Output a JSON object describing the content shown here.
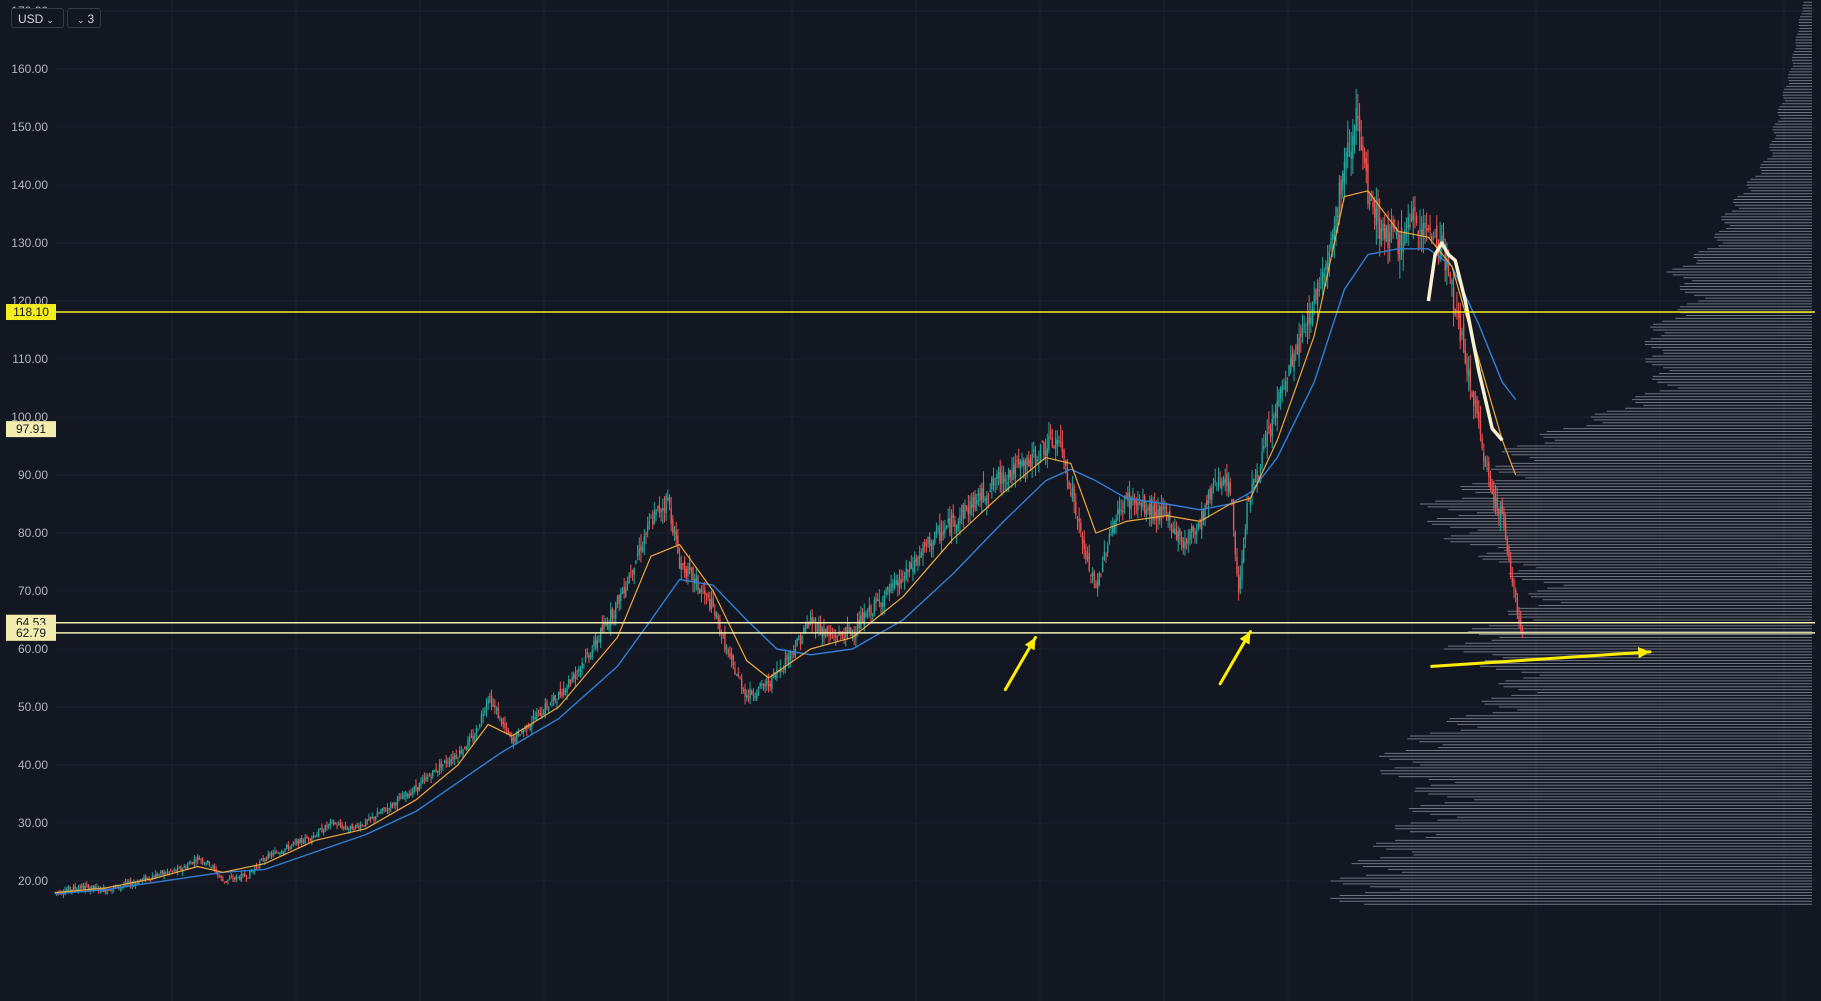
{
  "toolbar": {
    "currency_label": "USD",
    "collapse_count": "3"
  },
  "colors": {
    "background": "#131722",
    "grid": "#1e2230",
    "candle_up": "#26a69a",
    "candle_down": "#ef5350",
    "ma_fast": "#f0a83a",
    "ma_slow": "#2f7fd8",
    "level_line": "#f5ec1f",
    "level_line_light": "#f3eeb0",
    "annotation": "#ffee00",
    "volume_profile": "#808592",
    "axis_text": "#b2b5be"
  },
  "chart_data": {
    "type": "candlestick",
    "ylim": [
      15,
      176
    ],
    "y_ticks": [
      "20.00",
      "30.00",
      "40.00",
      "50.00",
      "60.00",
      "70.00",
      "80.00",
      "90.00",
      "100.00",
      "110.00",
      "120.00",
      "130.00",
      "140.00",
      "150.00",
      "160.00",
      "170.00"
    ],
    "price_path": [
      [
        0,
        18
      ],
      [
        15,
        19
      ],
      [
        30,
        18.5
      ],
      [
        45,
        19.5
      ],
      [
        60,
        21
      ],
      [
        75,
        22
      ],
      [
        85,
        24
      ],
      [
        92,
        23
      ],
      [
        100,
        20
      ],
      [
        115,
        21
      ],
      [
        125,
        24
      ],
      [
        140,
        26
      ],
      [
        155,
        28
      ],
      [
        165,
        30
      ],
      [
        175,
        29
      ],
      [
        185,
        30
      ],
      [
        200,
        33
      ],
      [
        215,
        36
      ],
      [
        230,
        40
      ],
      [
        240,
        42
      ],
      [
        250,
        45
      ],
      [
        258,
        52
      ],
      [
        265,
        48
      ],
      [
        272,
        44
      ],
      [
        285,
        48
      ],
      [
        300,
        52
      ],
      [
        320,
        60
      ],
      [
        335,
        68
      ],
      [
        345,
        75
      ],
      [
        355,
        82
      ],
      [
        365,
        86
      ],
      [
        372,
        75
      ],
      [
        380,
        72
      ],
      [
        392,
        67
      ],
      [
        402,
        58
      ],
      [
        412,
        52
      ],
      [
        425,
        54
      ],
      [
        440,
        60
      ],
      [
        450,
        65
      ],
      [
        462,
        62
      ],
      [
        475,
        63
      ],
      [
        490,
        68
      ],
      [
        505,
        72
      ],
      [
        520,
        78
      ],
      [
        535,
        82
      ],
      [
        550,
        86
      ],
      [
        565,
        90
      ],
      [
        580,
        92
      ],
      [
        590,
        95
      ],
      [
        598,
        96
      ],
      [
        605,
        88
      ],
      [
        612,
        78
      ],
      [
        620,
        70
      ],
      [
        628,
        80
      ],
      [
        638,
        86
      ],
      [
        650,
        84
      ],
      [
        662,
        83
      ],
      [
        672,
        78
      ],
      [
        682,
        82
      ],
      [
        692,
        90
      ],
      [
        700,
        87
      ],
      [
        705,
        70
      ],
      [
        710,
        85
      ],
      [
        718,
        92
      ],
      [
        728,
        102
      ],
      [
        740,
        112
      ],
      [
        750,
        120
      ],
      [
        760,
        130
      ],
      [
        768,
        143
      ],
      [
        775,
        152
      ],
      [
        782,
        138
      ],
      [
        790,
        132
      ],
      [
        800,
        130
      ],
      [
        810,
        134
      ],
      [
        818,
        132
      ],
      [
        826,
        130
      ],
      [
        832,
        122
      ],
      [
        840,
        110
      ],
      [
        848,
        98
      ],
      [
        855,
        88
      ],
      [
        862,
        83
      ],
      [
        866,
        75
      ],
      [
        870,
        68
      ],
      [
        874,
        63
      ]
    ],
    "ma_fast": [
      [
        0,
        18
      ],
      [
        30,
        18.8
      ],
      [
        60,
        20.5
      ],
      [
        85,
        22.5
      ],
      [
        100,
        21.5
      ],
      [
        125,
        23
      ],
      [
        155,
        27
      ],
      [
        185,
        29
      ],
      [
        215,
        34
      ],
      [
        240,
        40
      ],
      [
        258,
        47
      ],
      [
        272,
        45
      ],
      [
        300,
        50
      ],
      [
        335,
        62
      ],
      [
        355,
        76
      ],
      [
        372,
        78
      ],
      [
        392,
        70
      ],
      [
        412,
        58
      ],
      [
        425,
        55
      ],
      [
        450,
        60
      ],
      [
        475,
        62
      ],
      [
        505,
        69
      ],
      [
        535,
        79
      ],
      [
        565,
        87
      ],
      [
        590,
        93
      ],
      [
        605,
        92
      ],
      [
        620,
        80
      ],
      [
        638,
        82
      ],
      [
        662,
        83
      ],
      [
        682,
        82
      ],
      [
        700,
        85
      ],
      [
        712,
        86
      ],
      [
        728,
        96
      ],
      [
        750,
        114
      ],
      [
        768,
        138
      ],
      [
        782,
        139
      ],
      [
        800,
        132
      ],
      [
        818,
        131
      ],
      [
        832,
        126
      ],
      [
        848,
        110
      ],
      [
        862,
        96
      ],
      [
        870,
        90
      ]
    ],
    "ma_slow": [
      [
        0,
        17.8
      ],
      [
        30,
        18.5
      ],
      [
        60,
        19.8
      ],
      [
        100,
        21.5
      ],
      [
        125,
        22
      ],
      [
        155,
        25
      ],
      [
        185,
        28
      ],
      [
        215,
        32
      ],
      [
        240,
        37
      ],
      [
        265,
        42
      ],
      [
        300,
        48
      ],
      [
        335,
        57
      ],
      [
        355,
        65
      ],
      [
        372,
        72
      ],
      [
        392,
        71
      ],
      [
        412,
        65
      ],
      [
        430,
        60
      ],
      [
        450,
        59
      ],
      [
        475,
        60
      ],
      [
        505,
        65
      ],
      [
        535,
        73
      ],
      [
        565,
        82
      ],
      [
        590,
        89
      ],
      [
        605,
        91
      ],
      [
        620,
        89
      ],
      [
        638,
        86
      ],
      [
        662,
        85
      ],
      [
        682,
        84
      ],
      [
        700,
        85
      ],
      [
        712,
        87
      ],
      [
        728,
        93
      ],
      [
        750,
        106
      ],
      [
        768,
        122
      ],
      [
        782,
        128
      ],
      [
        800,
        129
      ],
      [
        818,
        129
      ],
      [
        832,
        126
      ],
      [
        848,
        116
      ],
      [
        862,
        106
      ],
      [
        870,
        103
      ]
    ],
    "ma_highlight": [
      [
        818,
        120
      ],
      [
        822,
        128
      ],
      [
        826,
        130
      ],
      [
        830,
        128
      ],
      [
        834,
        127
      ],
      [
        840,
        120
      ],
      [
        848,
        108
      ],
      [
        856,
        98
      ],
      [
        862,
        96
      ]
    ],
    "volume_profile": [
      {
        "price": 20,
        "width": 0.86
      },
      {
        "price": 25,
        "width": 0.8
      },
      {
        "price": 30,
        "width": 0.74
      },
      {
        "price": 35,
        "width": 0.7
      },
      {
        "price": 40,
        "width": 0.8
      },
      {
        "price": 45,
        "width": 0.72
      },
      {
        "price": 50,
        "width": 0.6
      },
      {
        "price": 55,
        "width": 0.55
      },
      {
        "price": 60,
        "width": 0.66
      },
      {
        "price": 63,
        "width": 0.62
      },
      {
        "price": 66,
        "width": 0.55
      },
      {
        "price": 70,
        "width": 0.5
      },
      {
        "price": 75,
        "width": 0.58
      },
      {
        "price": 80,
        "width": 0.68
      },
      {
        "price": 85,
        "width": 0.7
      },
      {
        "price": 90,
        "width": 0.58
      },
      {
        "price": 95,
        "width": 0.55
      },
      {
        "price": 100,
        "width": 0.4
      },
      {
        "price": 105,
        "width": 0.28
      },
      {
        "price": 110,
        "width": 0.3
      },
      {
        "price": 115,
        "width": 0.3
      },
      {
        "price": 120,
        "width": 0.22
      },
      {
        "price": 125,
        "width": 0.26
      },
      {
        "price": 130,
        "width": 0.18
      },
      {
        "price": 135,
        "width": 0.16
      },
      {
        "price": 140,
        "width": 0.12
      },
      {
        "price": 145,
        "width": 0.08
      },
      {
        "price": 150,
        "width": 0.07
      },
      {
        "price": 160,
        "width": 0.04
      },
      {
        "price": 170,
        "width": 0.02
      }
    ],
    "levels": [
      {
        "price": 118.1,
        "label": "118.10",
        "style": "solid-yellow"
      },
      {
        "price": 97.91,
        "label": "97.91",
        "style": "marker-only"
      },
      {
        "price": 64.53,
        "label": "64.53",
        "style": "solid-light"
      },
      {
        "price": 62.79,
        "label": "62.79",
        "style": "solid-light"
      }
    ],
    "annotations": [
      {
        "type": "arrow",
        "from": [
          566,
          53
        ],
        "to": [
          584,
          62
        ]
      },
      {
        "type": "arrow",
        "from": [
          694,
          54
        ],
        "to": [
          712,
          63
        ]
      },
      {
        "type": "arrow",
        "from": [
          820,
          57
        ],
        "to": [
          950,
          59.5
        ]
      }
    ]
  }
}
